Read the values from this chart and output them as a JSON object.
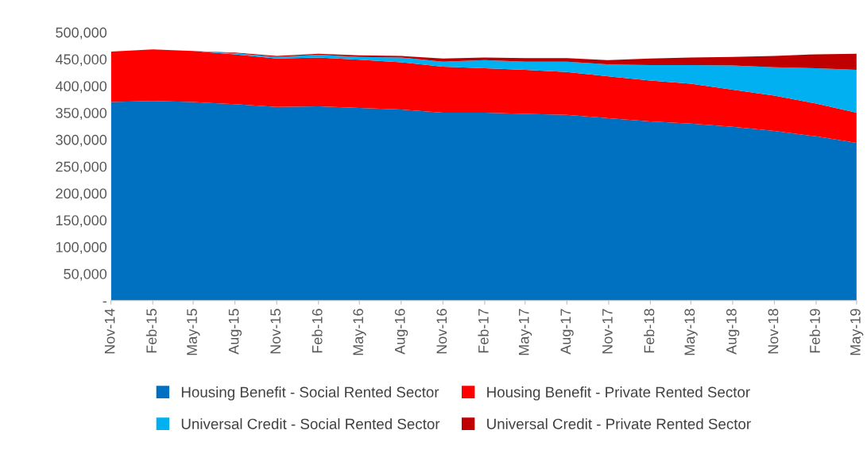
{
  "chart_data": {
    "type": "area",
    "stacked": true,
    "x": [
      "2014-11",
      "2015-02",
      "2015-05",
      "2015-08",
      "2015-11",
      "2016-02",
      "2016-05",
      "2016-08",
      "2016-11",
      "2017-02",
      "2017-05",
      "2017-08",
      "2017-11",
      "2018-02",
      "2018-05",
      "2018-08",
      "2018-11",
      "2019-02",
      "2019-05"
    ],
    "series": [
      {
        "name": "Housing Benefit - Social Rented Sector",
        "color": "#0070c0",
        "values": [
          370000,
          372000,
          370000,
          366000,
          361000,
          362000,
          359000,
          356000,
          350000,
          350000,
          348000,
          346000,
          340000,
          334000,
          330000,
          324000,
          316000,
          306000,
          294000
        ]
      },
      {
        "name": "Housing Benefit - Private Rented Sector",
        "color": "#ff0000",
        "values": [
          94000,
          96000,
          95000,
          93000,
          90000,
          91000,
          90000,
          88000,
          86000,
          83000,
          82000,
          80000,
          78000,
          76000,
          74000,
          69000,
          66000,
          61000,
          56000
        ]
      },
      {
        "name": "Universal Credit - Social Rented Sector",
        "color": "#00b0f0",
        "values": [
          0,
          0,
          0,
          2000,
          3000,
          5000,
          5000,
          9000,
          9000,
          15000,
          15000,
          19000,
          22000,
          29000,
          35000,
          45000,
          53000,
          66000,
          80000
        ]
      },
      {
        "name": "Universal Credit - Private Rented Sector",
        "color": "#c00000",
        "values": [
          0,
          0,
          0,
          1000,
          2000,
          2000,
          3000,
          3000,
          6000,
          5000,
          7000,
          7000,
          8000,
          12000,
          14000,
          16000,
          21000,
          26000,
          30000
        ]
      }
    ],
    "xlim": [
      "2014-11",
      "2019-05"
    ],
    "xticks": [
      {
        "value": "2014-11",
        "label": "Nov-14"
      },
      {
        "value": "2015-02",
        "label": "Feb-15"
      },
      {
        "value": "2015-05",
        "label": "May-15"
      },
      {
        "value": "2015-08",
        "label": "Aug-15"
      },
      {
        "value": "2015-11",
        "label": "Nov-15"
      },
      {
        "value": "2016-02",
        "label": "Feb-16"
      },
      {
        "value": "2016-05",
        "label": "May-16"
      },
      {
        "value": "2016-08",
        "label": "Aug-16"
      },
      {
        "value": "2016-11",
        "label": "Nov-16"
      },
      {
        "value": "2017-02",
        "label": "Feb-17"
      },
      {
        "value": "2017-05",
        "label": "May-17"
      },
      {
        "value": "2017-08",
        "label": "Aug-17"
      },
      {
        "value": "2017-11",
        "label": "Nov-17"
      },
      {
        "value": "2018-02",
        "label": "Feb-18"
      },
      {
        "value": "2018-05",
        "label": "May-18"
      },
      {
        "value": "2018-08",
        "label": "Aug-18"
      },
      {
        "value": "2018-11",
        "label": "Nov-18"
      },
      {
        "value": "2019-02",
        "label": "Feb-19"
      },
      {
        "value": "2019-05",
        "label": "May-19"
      }
    ],
    "ylim": [
      0,
      500000
    ],
    "yticks": [
      {
        "value": 0,
        "label": "-"
      },
      {
        "value": 50000,
        "label": "50,000"
      },
      {
        "value": 100000,
        "label": "100,000"
      },
      {
        "value": 150000,
        "label": "150,000"
      },
      {
        "value": 200000,
        "label": "200,000"
      },
      {
        "value": 250000,
        "label": "250,000"
      },
      {
        "value": 300000,
        "label": "300,000"
      },
      {
        "value": 350000,
        "label": "350,000"
      },
      {
        "value": 400000,
        "label": "400,000"
      },
      {
        "value": 450000,
        "label": "450,000"
      },
      {
        "value": 500000,
        "label": "500,000"
      }
    ],
    "grid": false,
    "legend": "bottom"
  }
}
